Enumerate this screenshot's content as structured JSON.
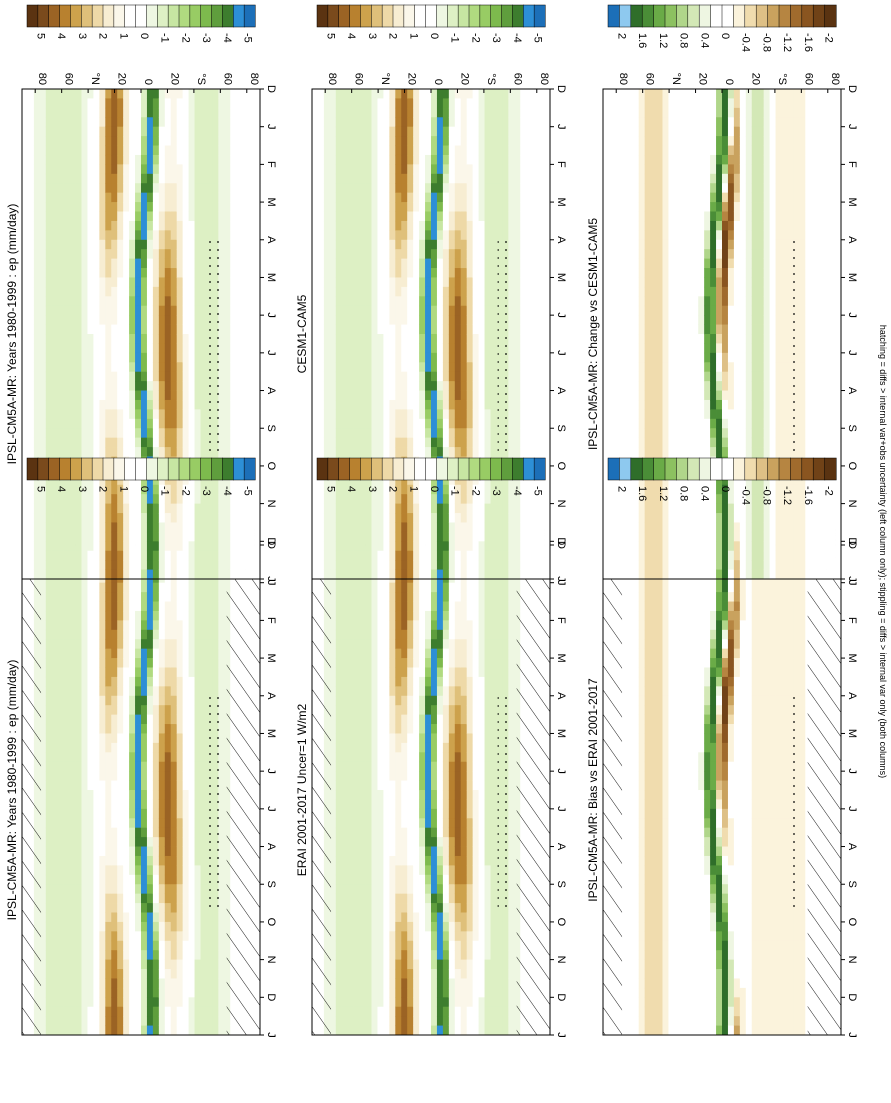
{
  "figure": {
    "footnote": "hatching = diffs > internal var+obs uncertainty (left column only); stippling = diffs > internal var only (both columns)"
  },
  "months": [
    "D",
    "J",
    "F",
    "M",
    "A",
    "M",
    "J",
    "J",
    "A",
    "S",
    "O",
    "N",
    "D",
    "J"
  ],
  "lat_ticks": [
    "80",
    "60",
    "°N",
    "20",
    "0",
    "20",
    "°S",
    "60",
    "80"
  ],
  "colorbars": {
    "standard": {
      "labels": [
        "5",
        "4",
        "3",
        "2",
        "1",
        "0",
        "-1",
        "-2",
        "-3",
        "-4",
        "-5"
      ],
      "colors": [
        "#5b3311",
        "#7a4a1c",
        "#9b6324",
        "#b8812f",
        "#cda24c",
        "#dfc07a",
        "#eed9a7",
        "#f7edd2",
        "#fbf7ea",
        "#ffffff",
        "#ffffff",
        "#eef7e2",
        "#ddf0c4",
        "#c7e6a2",
        "#b0da80",
        "#98cc64",
        "#7dba4d",
        "#5f9e3d",
        "#3d7d2e",
        "#2d8fd6",
        "#1c6fb8"
      ]
    },
    "diff": {
      "labels": [
        "2",
        "1.6",
        "1.2",
        "0.8",
        "0.4",
        "0",
        "-0.4",
        "-0.8",
        "-1.2",
        "-1.6",
        "-2"
      ],
      "colors": [
        "#1c6fb8",
        "#8ec9ef",
        "#2f6e2a",
        "#4a8d37",
        "#6aab47",
        "#8cc160",
        "#b0d68a",
        "#d3e8b6",
        "#eef6e2",
        "#ffffff",
        "#ffffff",
        "#fbf3dc",
        "#f0dcae",
        "#dec086",
        "#c9a25e",
        "#b68541",
        "#a06b2d",
        "#8a5520",
        "#704217",
        "#5a3311"
      ]
    }
  },
  "chart_data": [
    {
      "type": "heatmap",
      "title": "IPSL-CM5A-MR: Years 1980-1999 : ep (mm/day)",
      "x": "latitude (80°N to 80°S)",
      "y": "month (D J F M A M J J A S O N D J)",
      "zlim": [
        -5,
        5
      ],
      "units": "mm/day",
      "features": [
        {
          "band": "northern subtropics ~20°N",
          "value": 4
        },
        {
          "band": "ITCZ ~5°N-10°S",
          "value": -4
        },
        {
          "band": "southern subtropics ~20°S",
          "value": 4
        },
        {
          "band": "southern storm track ~45°S",
          "value": -1
        }
      ],
      "hatching": true,
      "stippling": true
    },
    {
      "type": "heatmap",
      "title": "IPSL-CM5A-MR: Years 1980-1999 : ep (mm/day)",
      "x": "latitude (80°N to 80°S)",
      "y": "month",
      "zlim": [
        -5,
        5
      ],
      "units": "mm/day",
      "hatching": false,
      "stippling": true
    },
    {
      "type": "heatmap",
      "title": "ERAI 2001-2017 Uncer=1 W/m2",
      "x": "latitude (80°N to 80°S)",
      "y": "month",
      "zlim": [
        -5,
        5
      ],
      "units": "mm/day",
      "hatching": true,
      "stippling": true
    },
    {
      "type": "heatmap",
      "title": "CESM1-CAM5",
      "x": "latitude (80°N to 80°S)",
      "y": "month",
      "zlim": [
        -5,
        5
      ],
      "units": "mm/day",
      "hatching": false,
      "stippling": true
    },
    {
      "type": "heatmap",
      "title": "IPSL-CM5A-MR: Bias vs ERAI 2001-2017",
      "x": "latitude (80°N to 80°S)",
      "y": "month",
      "zlim": [
        -2,
        2
      ],
      "units": "mm/day",
      "hatching": true,
      "stippling": true
    },
    {
      "type": "heatmap",
      "title": "IPSL-CM5A-MR: Change vs CESM1-CAM5",
      "x": "latitude (80°N to 80°S)",
      "y": "month",
      "zlim": [
        -2,
        2
      ],
      "units": "mm/day",
      "hatching": false,
      "stippling": true
    }
  ]
}
